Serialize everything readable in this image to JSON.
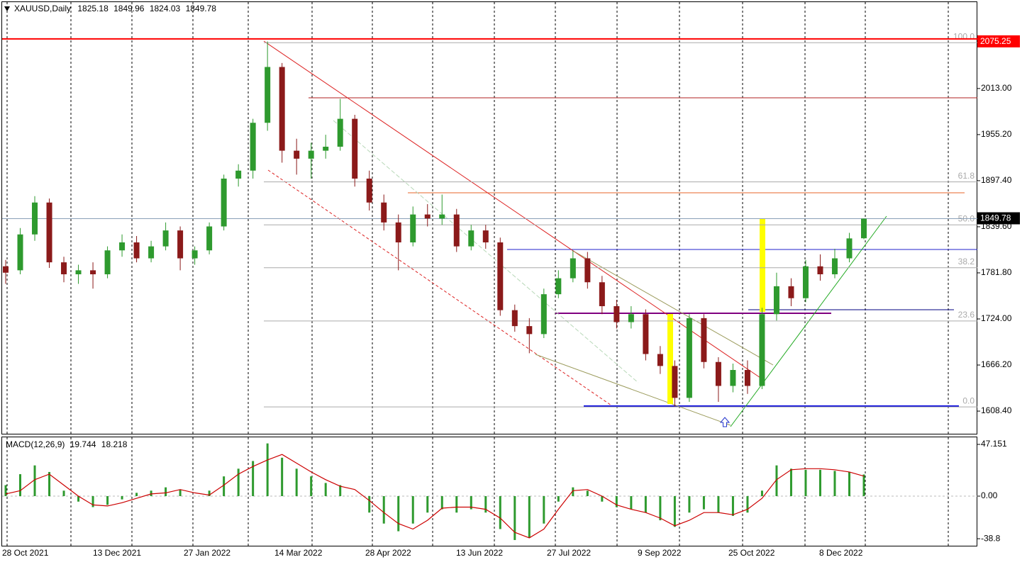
{
  "chart_data": {
    "type": "candlestick",
    "title": "XAUUSD,Daily",
    "up_color": "#2e9a2e",
    "down_color": "#8b1a1a",
    "series": {
      "open": [
        1790,
        1785,
        1830,
        1870,
        1795,
        1780,
        1785,
        1780,
        1810,
        1820,
        1800,
        1815,
        1835,
        1800,
        1810,
        1840,
        1900,
        1910,
        1970,
        2040,
        1935,
        1925,
        1935,
        1940,
        1975,
        1900,
        1870,
        1845,
        1820,
        1855,
        1850,
        1855,
        1815,
        1835,
        1820,
        1735,
        1715,
        1705,
        1755,
        1775,
        1800,
        1770,
        1740,
        1720,
        1730,
        1680,
        1665,
        1625,
        1725,
        1670,
        1640,
        1660,
        1640,
        1730,
        1765,
        1750,
        1790,
        1780,
        1800,
        1825.18
      ],
      "high": [
        1798,
        1838,
        1878,
        1875,
        1802,
        1792,
        1795,
        1815,
        1830,
        1828,
        1822,
        1845,
        1840,
        1815,
        1845,
        1905,
        1918,
        1975,
        2072,
        2045,
        1950,
        1945,
        1955,
        2000,
        1980,
        1910,
        1880,
        1855,
        1865,
        1868,
        1880,
        1862,
        1842,
        1842,
        1826,
        1742,
        1725,
        1762,
        1785,
        1810,
        1808,
        1778,
        1748,
        1740,
        1736,
        1690,
        1672,
        1730,
        1730,
        1676,
        1668,
        1672,
        1738,
        1782,
        1775,
        1798,
        1805,
        1812,
        1832,
        1849.96
      ],
      "low": [
        1768,
        1780,
        1822,
        1788,
        1770,
        1768,
        1762,
        1775,
        1802,
        1795,
        1795,
        1810,
        1785,
        1792,
        1805,
        1835,
        1890,
        1900,
        1960,
        1920,
        1905,
        1900,
        1925,
        1935,
        1890,
        1860,
        1835,
        1785,
        1815,
        1840,
        1842,
        1808,
        1810,
        1812,
        1728,
        1708,
        1681,
        1700,
        1750,
        1770,
        1762,
        1730,
        1712,
        1712,
        1672,
        1655,
        1614,
        1620,
        1662,
        1620,
        1632,
        1630,
        1636,
        1722,
        1740,
        1745,
        1772,
        1775,
        1795,
        1824.03
      ],
      "close": [
        1782,
        1830,
        1870,
        1795,
        1780,
        1785,
        1780,
        1810,
        1820,
        1800,
        1815,
        1835,
        1800,
        1810,
        1840,
        1900,
        1910,
        1970,
        2040,
        1935,
        1925,
        1935,
        1940,
        1975,
        1900,
        1870,
        1845,
        1820,
        1855,
        1850,
        1855,
        1815,
        1835,
        1820,
        1735,
        1715,
        1705,
        1755,
        1775,
        1800,
        1770,
        1740,
        1720,
        1730,
        1680,
        1665,
        1625,
        1725,
        1670,
        1640,
        1660,
        1640,
        1730,
        1765,
        1750,
        1790,
        1780,
        1800,
        1825,
        1849.78
      ]
    },
    "ylim": [
      1580,
      2124
    ],
    "yticks": [
      {
        "value": 2013,
        "label": "2013.00"
      },
      {
        "value": 1955.2,
        "label": "1955.20"
      },
      {
        "value": 1897.4,
        "label": "1897.40"
      },
      {
        "value": 1839.6,
        "label": "1839.60"
      },
      {
        "value": 1781.8,
        "label": "1781.80"
      },
      {
        "value": 1724,
        "label": "1724.00"
      },
      {
        "value": 1666.2,
        "label": "1666.20"
      },
      {
        "value": 1608.4,
        "label": "1608.40"
      }
    ],
    "level_line": {
      "value": 2075.25,
      "color": "#ff0000"
    },
    "fib_levels": [
      {
        "label": "100.0",
        "price": 2070.4
      },
      {
        "label": "61.8",
        "price": 1895.9
      },
      {
        "label": "50.0",
        "price": 1842
      },
      {
        "label": "38.2",
        "price": 1788.2
      },
      {
        "label": "23.6",
        "price": 1721.5
      },
      {
        "label": "0.0",
        "price": 1613.7
      }
    ],
    "x_labels": [
      "28 Oct 2021",
      "13 Dec 2021",
      "27 Jan 2022",
      "14 Mar 2022",
      "28 Apr 2022",
      "13 Jun 2022",
      "27 Jul 2022",
      "9 Sep 2022",
      "25 Oct 2022",
      "8 Dec 2022"
    ],
    "macd": {
      "label": "MACD(12,26,9)",
      "hist_color": "#2e9a2e",
      "signal_color": "#cc0000",
      "histogram": [
        10,
        20,
        28,
        22,
        5,
        -5,
        -10,
        -8,
        -3,
        3,
        5,
        8,
        6,
        0,
        5,
        18,
        25,
        32,
        48,
        35,
        25,
        18,
        12,
        10,
        0,
        -15,
        -25,
        -32,
        -25,
        -15,
        -12,
        -15,
        -12,
        -15,
        -30,
        -40,
        -38,
        -25,
        -5,
        8,
        5,
        -5,
        -10,
        -12,
        -15,
        -22,
        -28,
        -15,
        -12,
        -15,
        -18,
        -15,
        5,
        28,
        25,
        24,
        24,
        23,
        22,
        19.744
      ],
      "signal": [
        2,
        5,
        15,
        20,
        10,
        0,
        -8,
        -9,
        -6,
        -2,
        2,
        3,
        6,
        3,
        1,
        10,
        20,
        27,
        33,
        38,
        30,
        22,
        15,
        9,
        6,
        -4,
        -15,
        -25,
        -30,
        -22,
        -11,
        -10,
        -10,
        -12,
        -20,
        -33,
        -38,
        -30,
        -12,
        5,
        6,
        0,
        -8,
        -12,
        -15,
        -20,
        -27,
        -22,
        -15,
        -15,
        -17,
        -12,
        -2,
        15,
        24,
        25,
        25,
        24,
        22,
        18.218
      ],
      "ylim": [
        -45.2,
        53.6
      ],
      "yticks": [
        47.151,
        {
          "value": 0,
          "label": "0.00"
        },
        -38.8
      ]
    }
  }
}
